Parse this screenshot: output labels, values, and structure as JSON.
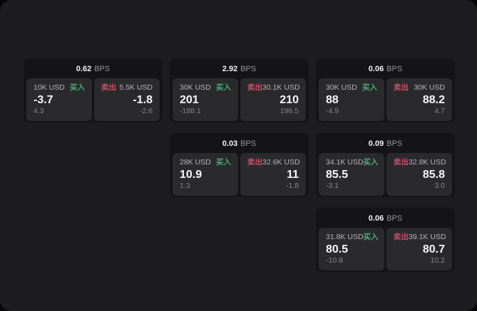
{
  "labels": {
    "bps": "BPS",
    "buy": "买入",
    "sell": "卖出"
  },
  "colors": {
    "panel-bg": "#1d1d1f",
    "card-bg": "#141416",
    "subcard-bg": "#2a2a2d",
    "label-color": "#b6b6ba",
    "muted-color": "#86868a",
    "bps-unit-color": "#98989c",
    "buy-color": "#4cab74",
    "sell-color": "#ca4d66"
  },
  "cards": [
    {
      "bps": "0.62",
      "buy": {
        "amount": "10K USD",
        "value": "-3.7",
        "sub": "4.3"
      },
      "sell": {
        "amount": "5.5K USD",
        "value": "-1.8",
        "sub": "-2.6"
      }
    },
    {
      "bps": "2.92",
      "buy": {
        "amount": "30K USD",
        "value": "201",
        "sub": "-188.1"
      },
      "sell": {
        "amount": "30.1K USD",
        "value": "210",
        "sub": "196.5"
      }
    },
    {
      "bps": "0.06",
      "buy": {
        "amount": "30K USD",
        "value": "88",
        "sub": "-4.9"
      },
      "sell": {
        "amount": "30K USD",
        "value": "88.2",
        "sub": "4.7"
      }
    },
    {
      "bps": "0.03",
      "buy": {
        "amount": "28K USD",
        "value": "10.9",
        "sub": "1.3"
      },
      "sell": {
        "amount": "32.6K USD",
        "value": "11",
        "sub": "-1.8"
      }
    },
    {
      "bps": "0.09",
      "buy": {
        "amount": "34.1K USD",
        "value": "85.5",
        "sub": "-3.1"
      },
      "sell": {
        "amount": "32.8K USD",
        "value": "85.8",
        "sub": "3.0"
      }
    },
    {
      "bps": "0.06",
      "buy": {
        "amount": "31.8K USD",
        "value": "80.5",
        "sub": "-10.8"
      },
      "sell": {
        "amount": "39.1K USD",
        "value": "80.7",
        "sub": "10.2"
      }
    }
  ]
}
